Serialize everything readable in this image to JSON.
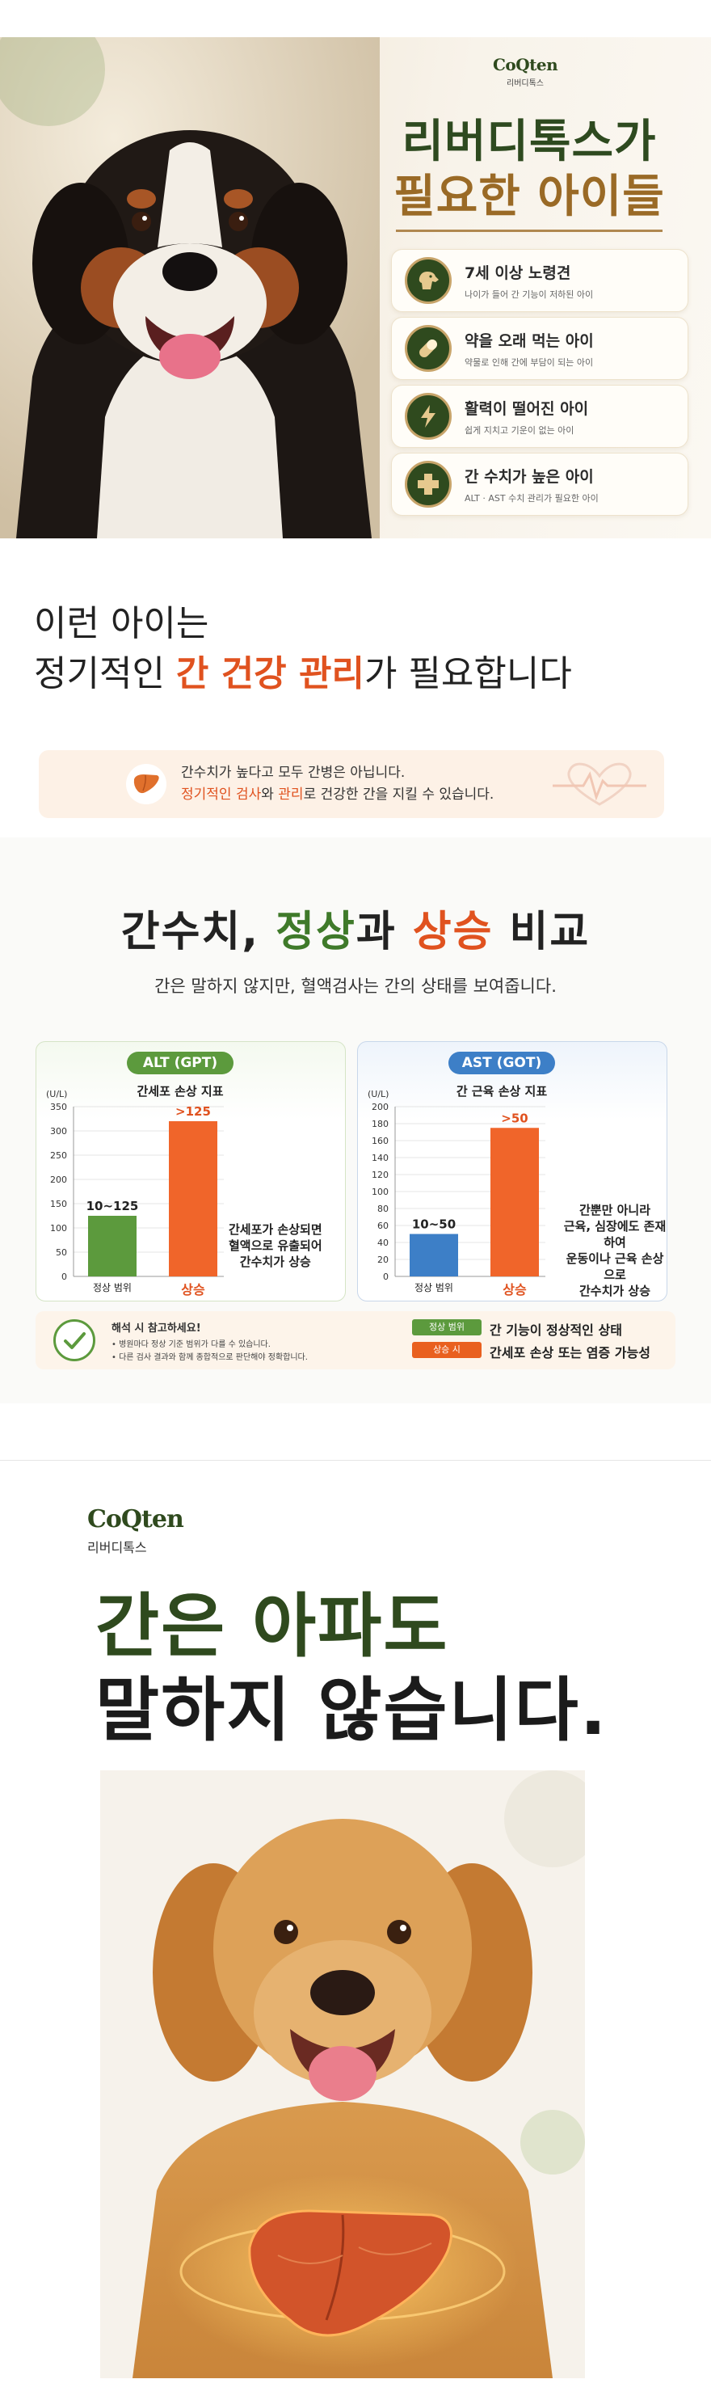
{
  "hero": {
    "brand_logo": "CoQten",
    "brand_sub": "리버디톡스",
    "title_line1": "리버디톡스가",
    "title_line2": "필요한 아이들",
    "cards": [
      {
        "icon": "dog-icon",
        "title": "7세 이상 노령견",
        "desc": "나이가 들어 간 기능이 저하된 아이"
      },
      {
        "icon": "pill-icon",
        "title": "약을 오래 먹는 아이",
        "desc": "약물로 인해 간에 부담이 되는 아이"
      },
      {
        "icon": "lightning-icon",
        "title": "활력이 떨어진 아이",
        "desc": "쉽게 지치고 기운이 없는 아이"
      },
      {
        "icon": "plus-icon",
        "title": "간 수치가 높은 아이",
        "desc": "ALT · AST 수치 관리가 필요한 아이"
      }
    ]
  },
  "section2": {
    "line1": "이런 아이는",
    "line2_pre": "정기적인 ",
    "line2_highlight1": "간 건강",
    "line2_mid": " ",
    "line2_highlight2": "관리",
    "line2_post": "가 필요합니다",
    "info_line1": "간수치가 높다고 모두 간병은 아닙니다.",
    "info_line2_o1": "정기적인 검사",
    "info_line2_mid": "와 ",
    "info_line2_o2": "관리",
    "info_line2_post": "로 건강한 간을 지킬 수 있습니다."
  },
  "section3": {
    "title_pre": "간수치, ",
    "title_green": "정상",
    "title_mid": "과 ",
    "title_orange": "상승",
    "title_post": " 비교",
    "subtitle": "간은 말하지 않지만, 혈액검사는 간의 상태를 보여줍니다.",
    "legend": {
      "heading": "해석 시 참고하세요!",
      "bullet1": "• 병원마다 정상 기준 범위가 다를 수 있습니다.",
      "bullet2": "• 다른 검사 결과와 함께 종합적으로 판단해야 정확합니다.",
      "tag_normal": "정상 범위",
      "tag_high": "상승 시",
      "text_normal": "간 기능이 정상적인 상태",
      "text_high": "간세포 손상 또는 염증 가능성"
    }
  },
  "chart_data": [
    {
      "type": "bar",
      "title": "간세포 손상 지표",
      "badge": "ALT (GPT)",
      "ylabel": "(U/L)",
      "ylim": [
        0,
        350
      ],
      "yticks": [
        "0",
        "50",
        "100",
        "150",
        "200",
        "250",
        "300",
        "350"
      ],
      "categories": [
        "정상 범위",
        "상승"
      ],
      "values": [
        125,
        320
      ],
      "value_labels": [
        "10~125",
        ">125"
      ],
      "colors": [
        "#5c9a3d",
        "#f0652a"
      ],
      "annotation": [
        "간세포가 손상되면",
        "혈액으로 유출되어",
        "간수치가 상승"
      ],
      "grid": true
    },
    {
      "type": "bar",
      "title": "간 근육 손상 지표",
      "badge": "AST (GOT)",
      "ylabel": "(U/L)",
      "ylim": [
        0,
        200
      ],
      "yticks": [
        "0",
        "20",
        "40",
        "60",
        "80",
        "100",
        "120",
        "140",
        "160",
        "180",
        "200"
      ],
      "categories": [
        "정상 범위",
        "상승"
      ],
      "values": [
        50,
        175
      ],
      "value_labels": [
        "10~50",
        ">50"
      ],
      "colors": [
        "#3d7fc7",
        "#f0652a"
      ],
      "annotation": [
        "간뿐만 아니라",
        "근육, 심장에도 존재하여",
        "운동이나 근육 손상으로",
        "간수치가 상승"
      ],
      "grid": true
    }
  ],
  "section4": {
    "brand_logo": "CoQten",
    "brand_sub": "리버디톡스",
    "title_line1": "간은 아파도",
    "title_line2": "말하지 않습니다."
  },
  "colors": {
    "brand_green": "#2f4a1e",
    "accent_gold": "#9a6a26",
    "accent_orange": "#e0521f",
    "normal_green": "#5c9a3d",
    "ast_blue": "#3d7fc7"
  }
}
